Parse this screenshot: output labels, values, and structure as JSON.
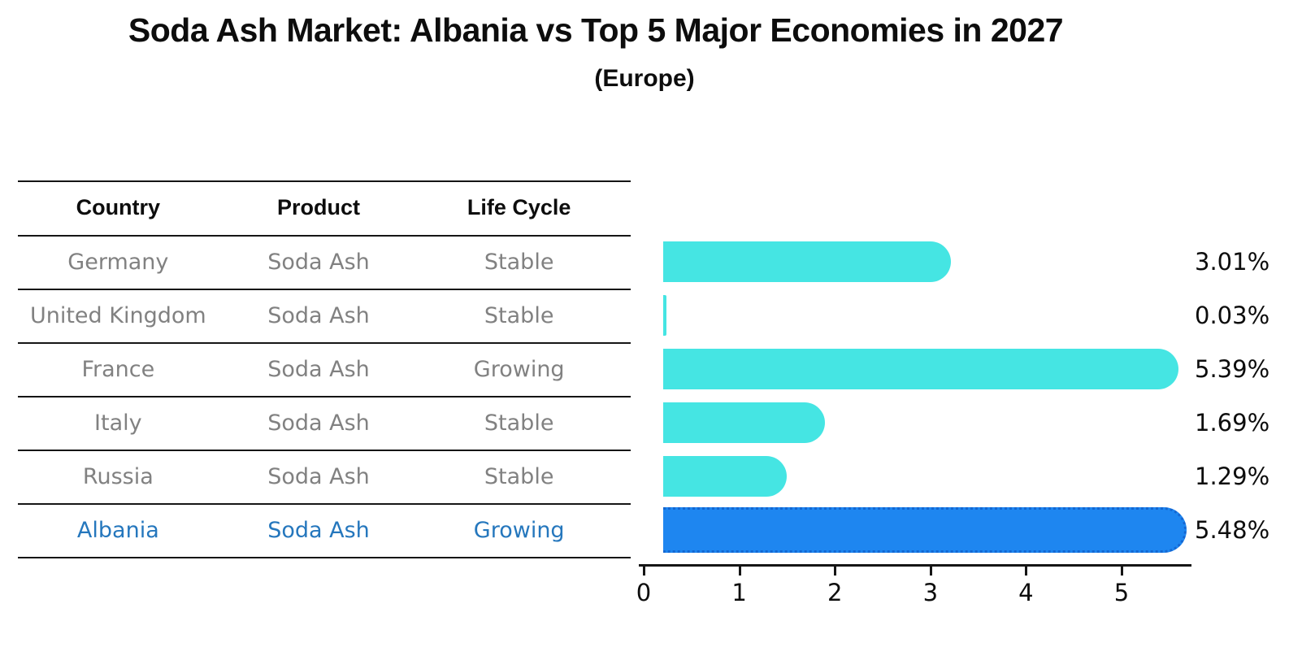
{
  "header": {
    "title": "Soda Ash Market: Albania vs Top 5 Major Economies in 2027",
    "subtitle": "(Europe)"
  },
  "table": {
    "columns": [
      "Country",
      "Product",
      "Life Cycle"
    ],
    "rows": [
      {
        "country": "Germany",
        "product": "Soda Ash",
        "life_cycle": "Stable",
        "highlighted": false
      },
      {
        "country": "United Kingdom",
        "product": "Soda Ash",
        "life_cycle": "Stable",
        "highlighted": false
      },
      {
        "country": "France",
        "product": "Soda Ash",
        "life_cycle": "Growing",
        "highlighted": false
      },
      {
        "country": "Italy",
        "product": "Soda Ash",
        "life_cycle": "Stable",
        "highlighted": false
      },
      {
        "country": "Russia",
        "product": "Soda Ash",
        "life_cycle": "Stable",
        "highlighted": false
      },
      {
        "country": "Albania",
        "product": "Soda Ash",
        "life_cycle": "Growing",
        "highlighted": true
      }
    ]
  },
  "chart_data": {
    "type": "bar",
    "orientation": "horizontal",
    "title": "Soda Ash Market: Albania vs Top 5 Major Economies in 2027",
    "subtitle": "(Europe)",
    "categories": [
      "Germany",
      "United Kingdom",
      "France",
      "Italy",
      "Russia",
      "Albania"
    ],
    "values": [
      3.01,
      0.03,
      5.39,
      1.69,
      1.29,
      5.48
    ],
    "value_labels": [
      "3.01%",
      "0.03%",
      "5.39%",
      "1.69%",
      "1.29%",
      "5.48%"
    ],
    "units": "percent",
    "x_ticks": [
      "0",
      "1",
      "2",
      "3",
      "4",
      "5"
    ],
    "xlim": [
      0,
      5.7
    ],
    "grid": false,
    "legend": false,
    "highlight_index": 5
  },
  "colors": {
    "bar": "#45E5E3",
    "highlight_bar": "#1E86F0",
    "highlight_border": "#1467D2",
    "highlight_text": "#2577bd",
    "muted_text": "#818181",
    "text": "#0d0d0d"
  }
}
